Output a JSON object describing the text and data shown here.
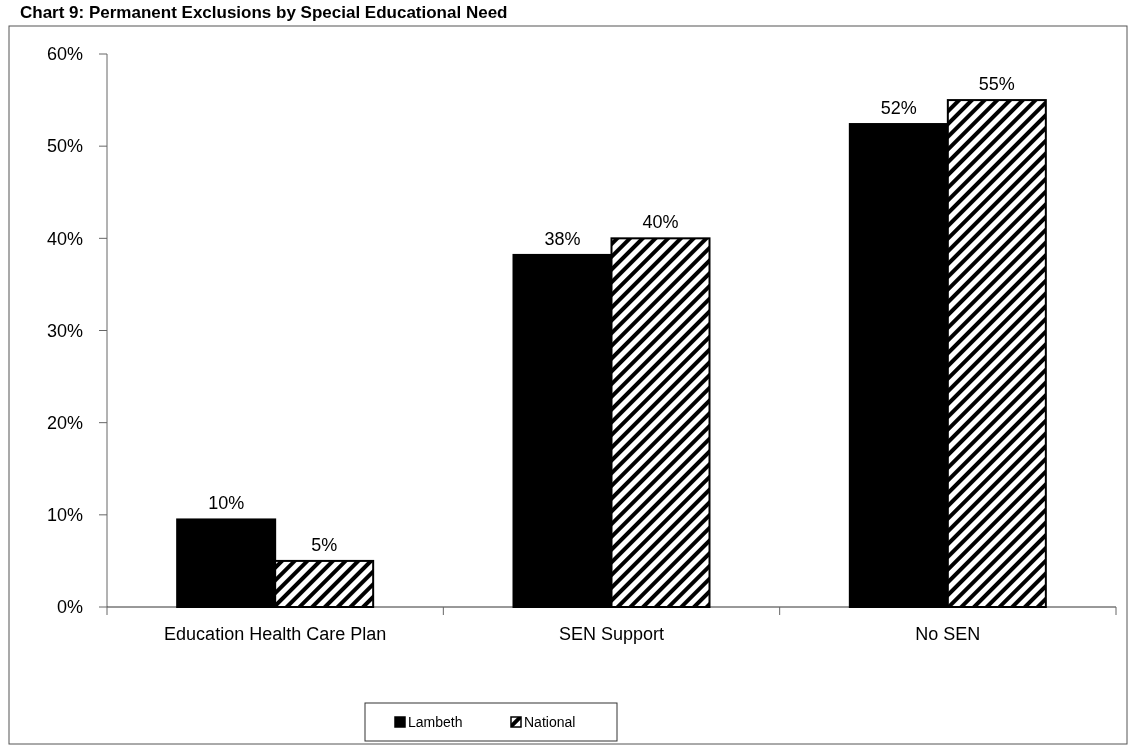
{
  "chart_data": {
    "type": "bar",
    "title": "Chart 9: Permanent Exclusions by Special Educational Need",
    "categories": [
      "Education Health Care Plan",
      "SEN Support",
      "No SEN"
    ],
    "series": [
      {
        "name": "Lambeth",
        "color": "#000000",
        "values": [
          9.5,
          38.2,
          52.4
        ],
        "value_labels": [
          "10%",
          "38%",
          "52%"
        ]
      },
      {
        "name": "National",
        "color": "#000000",
        "values": [
          5,
          40,
          55
        ],
        "value_labels": [
          "5%",
          "40%",
          "55%"
        ]
      }
    ],
    "ylim": [
      0,
      60
    ],
    "yticks": [
      {
        "value": 0,
        "label": "0%"
      },
      {
        "value": 10,
        "label": "10%"
      },
      {
        "value": 20,
        "label": "20%"
      },
      {
        "value": 30,
        "label": "30%"
      },
      {
        "value": 40,
        "label": "40%"
      },
      {
        "value": 50,
        "label": "50%"
      },
      {
        "value": 60,
        "label": "60%"
      }
    ],
    "grid": false,
    "legend": "bottom"
  }
}
